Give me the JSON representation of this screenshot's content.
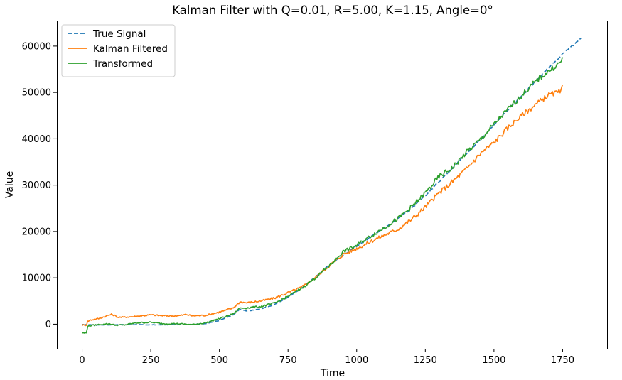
{
  "chart_data": {
    "type": "line",
    "title": "Kalman Filter with Q=0.01, R=5.00, K=1.15, Angle=0°",
    "xlabel": "Time",
    "ylabel": "Value",
    "xlim": [
      -92,
      1912
    ],
    "ylim": [
      -5300,
      65500
    ],
    "x_ticks": [
      0,
      250,
      500,
      750,
      1000,
      1250,
      1500,
      1750
    ],
    "y_ticks": [
      0,
      10000,
      20000,
      30000,
      40000,
      50000,
      60000
    ],
    "x_tick_labels": [
      "0",
      "250",
      "500",
      "750",
      "1000",
      "1250",
      "1500",
      "1750"
    ],
    "y_tick_labels": [
      "0",
      "10000",
      "20000",
      "30000",
      "40000",
      "50000",
      "60000"
    ],
    "grid": false,
    "legend_position": "top-left",
    "series": [
      {
        "name": "True Signal",
        "color": "#1f77b4",
        "style": "dashed",
        "points": [
          [
            0,
            -100
          ],
          [
            50,
            -150
          ],
          [
            100,
            -150
          ],
          [
            150,
            -100
          ],
          [
            200,
            -100
          ],
          [
            250,
            -150
          ],
          [
            300,
            -150
          ],
          [
            350,
            -100
          ],
          [
            400,
            -50
          ],
          [
            450,
            100
          ],
          [
            500,
            800
          ],
          [
            550,
            2000
          ],
          [
            575,
            3200
          ],
          [
            600,
            2800
          ],
          [
            650,
            3300
          ],
          [
            700,
            4200
          ],
          [
            750,
            5800
          ],
          [
            800,
            7800
          ],
          [
            850,
            10200
          ],
          [
            900,
            12800
          ],
          [
            950,
            14800
          ],
          [
            1000,
            16800
          ],
          [
            1050,
            18800
          ],
          [
            1100,
            20800
          ],
          [
            1150,
            22800
          ],
          [
            1200,
            25000
          ],
          [
            1250,
            27700
          ],
          [
            1300,
            30800
          ],
          [
            1350,
            33800
          ],
          [
            1400,
            36800
          ],
          [
            1450,
            39800
          ],
          [
            1500,
            43000
          ],
          [
            1550,
            46200
          ],
          [
            1600,
            49200
          ],
          [
            1650,
            52300
          ],
          [
            1700,
            55300
          ],
          [
            1750,
            58300
          ],
          [
            1800,
            60800
          ],
          [
            1820,
            61700
          ]
        ]
      },
      {
        "name": "Kalman Filtered",
        "color": "#ff7f0e",
        "style": "solid",
        "points": [
          [
            0,
            -200
          ],
          [
            15,
            -200
          ],
          [
            20,
            600
          ],
          [
            30,
            900
          ],
          [
            60,
            1200
          ],
          [
            100,
            2000
          ],
          [
            110,
            2100
          ],
          [
            130,
            1500
          ],
          [
            150,
            1500
          ],
          [
            200,
            1700
          ],
          [
            250,
            2000
          ],
          [
            300,
            1800
          ],
          [
            350,
            1800
          ],
          [
            380,
            2100
          ],
          [
            400,
            1800
          ],
          [
            450,
            1900
          ],
          [
            500,
            2600
          ],
          [
            550,
            3500
          ],
          [
            575,
            4800
          ],
          [
            600,
            4600
          ],
          [
            650,
            5000
          ],
          [
            700,
            5600
          ],
          [
            750,
            6800
          ],
          [
            800,
            8000
          ],
          [
            850,
            10100
          ],
          [
            900,
            12600
          ],
          [
            950,
            15000
          ],
          [
            1000,
            16300
          ],
          [
            1050,
            17800
          ],
          [
            1100,
            19200
          ],
          [
            1150,
            20500
          ],
          [
            1200,
            22600
          ],
          [
            1250,
            25300
          ],
          [
            1300,
            28300
          ],
          [
            1350,
            30800
          ],
          [
            1400,
            33500
          ],
          [
            1450,
            36800
          ],
          [
            1500,
            39200
          ],
          [
            1550,
            42300
          ],
          [
            1600,
            45000
          ],
          [
            1650,
            47300
          ],
          [
            1700,
            49500
          ],
          [
            1745,
            50200
          ],
          [
            1750,
            51700
          ]
        ]
      },
      {
        "name": "Transformed",
        "color": "#2ca02c",
        "style": "solid",
        "points": [
          [
            0,
            -1900
          ],
          [
            15,
            -1900
          ],
          [
            20,
            -500
          ],
          [
            30,
            -300
          ],
          [
            60,
            -100
          ],
          [
            100,
            100
          ],
          [
            120,
            -200
          ],
          [
            150,
            -200
          ],
          [
            200,
            300
          ],
          [
            250,
            400
          ],
          [
            300,
            100
          ],
          [
            350,
            100
          ],
          [
            400,
            -100
          ],
          [
            450,
            300
          ],
          [
            500,
            1200
          ],
          [
            550,
            2200
          ],
          [
            575,
            3500
          ],
          [
            600,
            3500
          ],
          [
            650,
            3800
          ],
          [
            700,
            4500
          ],
          [
            750,
            6000
          ],
          [
            800,
            7800
          ],
          [
            850,
            10000
          ],
          [
            900,
            12600
          ],
          [
            950,
            15600
          ],
          [
            1000,
            17000
          ],
          [
            1050,
            19000
          ],
          [
            1100,
            20800
          ],
          [
            1150,
            22800
          ],
          [
            1200,
            25300
          ],
          [
            1250,
            28300
          ],
          [
            1300,
            31800
          ],
          [
            1350,
            33800
          ],
          [
            1400,
            37100
          ],
          [
            1450,
            39800
          ],
          [
            1500,
            43100
          ],
          [
            1550,
            46300
          ],
          [
            1600,
            49300
          ],
          [
            1650,
            52300
          ],
          [
            1700,
            54600
          ],
          [
            1745,
            56600
          ],
          [
            1750,
            57600
          ]
        ]
      }
    ]
  }
}
